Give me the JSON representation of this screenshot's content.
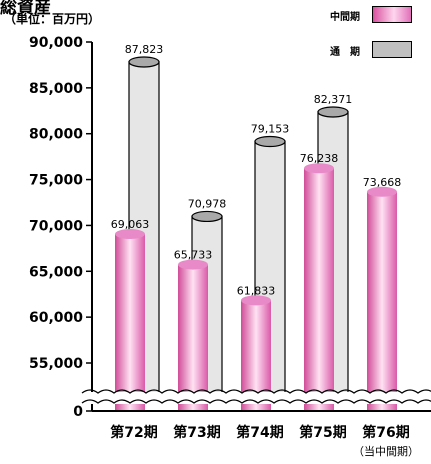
{
  "header": {
    "title": "総資産",
    "unit": "（単位：百万円）"
  },
  "legend": [
    {
      "label": "中間期",
      "color": "#e070b8"
    },
    {
      "label": "通　期",
      "color": "#c0c0c0"
    }
  ],
  "chart_data": {
    "type": "bar",
    "title": "総資産",
    "unit": "（単位：百万円）",
    "xlabel": "",
    "ylabel": "",
    "categories": [
      "第72期",
      "第73期",
      "第74期",
      "第75期",
      "第76期"
    ],
    "category_note": "（当中間期）",
    "series": [
      {
        "name": "中間期",
        "values": [
          69063,
          65733,
          61833,
          76238,
          73668
        ],
        "color": "#e070b8"
      },
      {
        "name": "通　期",
        "values": [
          87823,
          70978,
          79153,
          82371,
          null
        ],
        "color": "#c0c0c0"
      }
    ],
    "value_labels": {
      "中間期": [
        "69,063",
        "65,733",
        "61,833",
        "76,238",
        "73,668"
      ],
      "通期": [
        "87,823",
        "70,978",
        "79,153",
        "82,371",
        ""
      ]
    },
    "yticks": [
      0,
      55000,
      60000,
      65000,
      70000,
      75000,
      80000,
      85000,
      90000
    ],
    "ytick_labels": [
      "0",
      "55,000",
      "60,000",
      "65,000",
      "70,000",
      "75,000",
      "80,000",
      "85,000",
      "90,000"
    ],
    "ylim": [
      50000,
      90000
    ],
    "axis_break": true,
    "grid": false,
    "legend_position": "top-right"
  }
}
